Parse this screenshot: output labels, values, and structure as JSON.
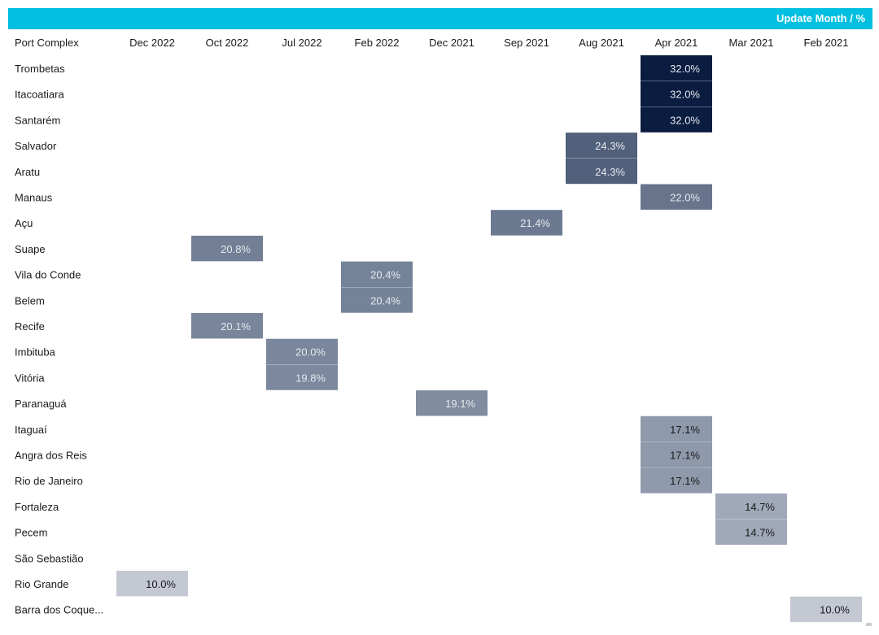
{
  "header": {
    "label": "Update Month / %"
  },
  "chart_data": {
    "type": "heatmap",
    "row_header": "Port Complex",
    "columns": [
      "Dec 2022",
      "Oct 2022",
      "Jul 2022",
      "Feb 2022",
      "Dec 2021",
      "Sep 2021",
      "Aug 2021",
      "Apr 2021",
      "Mar 2021",
      "Feb 2021"
    ],
    "rows": [
      "Trombetas",
      "Itacoatiara",
      "Santarém",
      "Salvador",
      "Aratu",
      "Manaus",
      "Açu",
      "Suape",
      "Vila do Conde",
      "Belem",
      "Recife",
      "Imbituba",
      "Vitória",
      "Paranaguá",
      "Itaguaí",
      "Angra dos Reis",
      "Rio de Janeiro",
      "Fortaleza",
      "Pecem",
      "São Sebastião",
      "Rio Grande",
      "Barra dos Coque..."
    ],
    "cells": [
      {
        "row": "Trombetas",
        "column": "Apr 2021",
        "value": 32.0,
        "label": "32.0%"
      },
      {
        "row": "Itacoatiara",
        "column": "Apr 2021",
        "value": 32.0,
        "label": "32.0%"
      },
      {
        "row": "Santarém",
        "column": "Apr 2021",
        "value": 32.0,
        "label": "32.0%"
      },
      {
        "row": "Salvador",
        "column": "Aug 2021",
        "value": 24.3,
        "label": "24.3%"
      },
      {
        "row": "Aratu",
        "column": "Aug 2021",
        "value": 24.3,
        "label": "24.3%"
      },
      {
        "row": "Manaus",
        "column": "Apr 2021",
        "value": 22.0,
        "label": "22.0%"
      },
      {
        "row": "Açu",
        "column": "Sep 2021",
        "value": 21.4,
        "label": "21.4%"
      },
      {
        "row": "Suape",
        "column": "Oct 2022",
        "value": 20.8,
        "label": "20.8%"
      },
      {
        "row": "Vila do Conde",
        "column": "Feb 2022",
        "value": 20.4,
        "label": "20.4%"
      },
      {
        "row": "Belem",
        "column": "Feb 2022",
        "value": 20.4,
        "label": "20.4%"
      },
      {
        "row": "Recife",
        "column": "Oct 2022",
        "value": 20.1,
        "label": "20.1%"
      },
      {
        "row": "Imbituba",
        "column": "Jul 2022",
        "value": 20.0,
        "label": "20.0%"
      },
      {
        "row": "Vitória",
        "column": "Jul 2022",
        "value": 19.8,
        "label": "19.8%"
      },
      {
        "row": "Paranaguá",
        "column": "Dec 2021",
        "value": 19.1,
        "label": "19.1%"
      },
      {
        "row": "Itaguaí",
        "column": "Apr 2021",
        "value": 17.1,
        "label": "17.1%"
      },
      {
        "row": "Angra dos Reis",
        "column": "Apr 2021",
        "value": 17.1,
        "label": "17.1%"
      },
      {
        "row": "Rio de Janeiro",
        "column": "Apr 2021",
        "value": 17.1,
        "label": "17.1%"
      },
      {
        "row": "Fortaleza",
        "column": "Mar 2021",
        "value": 14.7,
        "label": "14.7%"
      },
      {
        "row": "Pecem",
        "column": "Mar 2021",
        "value": 14.7,
        "label": "14.7%"
      },
      {
        "row": "Rio Grande",
        "column": "Dec 2022",
        "value": 10.0,
        "label": "10.0%"
      },
      {
        "row": "Barra dos Coque...",
        "column": "Feb 2021",
        "value": 10.0,
        "label": "10.0%"
      }
    ],
    "color_scale": {
      "low": "#c3c8d3",
      "mid": "#7a879c",
      "high": "#0a1c40"
    },
    "text_colors": {
      "on_dark": "#e6e9ef",
      "on_light": "#1a1a1a"
    },
    "grid": false,
    "legend": "none"
  }
}
